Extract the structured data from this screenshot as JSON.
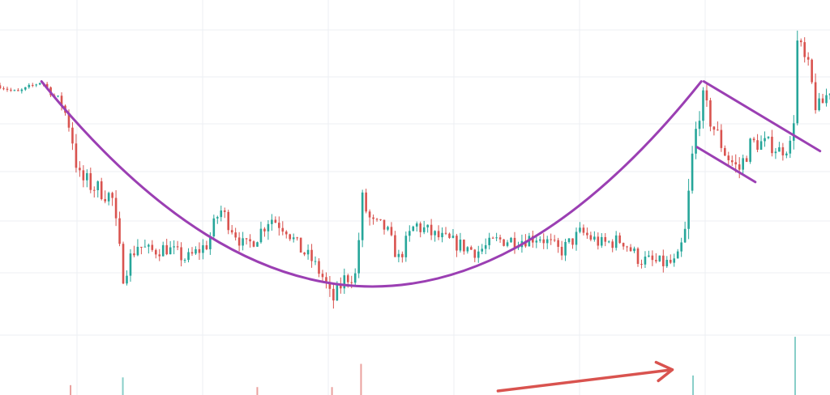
{
  "chart_data": {
    "type": "candlestick",
    "title": "",
    "xlabel": "",
    "ylabel": "",
    "grid": true,
    "ylim": [
      0,
      100
    ],
    "xlim": [
      0,
      100
    ],
    "colors": {
      "up": "#26a69a",
      "down": "#d9534f",
      "pattern": "#9b3fb3",
      "arrow": "#d9534f",
      "grid": "#eceff3"
    },
    "anchors": [
      [
        0.0,
        79.0,
        0.8
      ],
      [
        2.0,
        77.0,
        0.8
      ],
      [
        5.0,
        80.0,
        0.6
      ],
      [
        7.5,
        74.0,
        1.5
      ],
      [
        8.5,
        68.0,
        3.0
      ],
      [
        9.5,
        55.0,
        3.0
      ],
      [
        12.0,
        52.0,
        2.5
      ],
      [
        13.5,
        50.0,
        2.5
      ],
      [
        14.8,
        30.0,
        2.5
      ],
      [
        16.5,
        38.0,
        2.5
      ],
      [
        18.0,
        36.0,
        2.0
      ],
      [
        20.0,
        37.0,
        2.0
      ],
      [
        22.5,
        34.0,
        2.0
      ],
      [
        25.0,
        38.0,
        2.0
      ],
      [
        26.5,
        47.0,
        2.5
      ],
      [
        28.0,
        42.0,
        2.0
      ],
      [
        29.5,
        37.0,
        2.0
      ],
      [
        31.0,
        40.0,
        2.0
      ],
      [
        32.5,
        45.0,
        2.5
      ],
      [
        34.5,
        42.0,
        2.0
      ],
      [
        36.0,
        37.0,
        2.0
      ],
      [
        37.5,
        34.0,
        2.0
      ],
      [
        39.0,
        29.0,
        2.0
      ],
      [
        40.0,
        23.0,
        2.5
      ],
      [
        41.5,
        29.0,
        2.0
      ],
      [
        43.0,
        30.0,
        2.0
      ],
      [
        43.5,
        50.0,
        3.0
      ],
      [
        44.8,
        43.0,
        2.5
      ],
      [
        46.5,
        42.0,
        2.0
      ],
      [
        48.0,
        34.0,
        2.0
      ],
      [
        50.0,
        43.0,
        2.5
      ],
      [
        52.5,
        40.0,
        2.0
      ],
      [
        55.0,
        38.0,
        2.0
      ],
      [
        57.5,
        36.0,
        2.0
      ],
      [
        60.0,
        39.0,
        2.0
      ],
      [
        62.5,
        39.0,
        2.0
      ],
      [
        65.0,
        40.0,
        2.0
      ],
      [
        67.5,
        36.0,
        2.0
      ],
      [
        70.0,
        41.0,
        2.0
      ],
      [
        72.5,
        38.0,
        2.0
      ],
      [
        75.0,
        39.0,
        2.0
      ],
      [
        77.0,
        34.0,
        2.0
      ],
      [
        79.5,
        33.0,
        2.0
      ],
      [
        81.5,
        33.0,
        2.0
      ],
      [
        82.5,
        40.0,
        3.0
      ],
      [
        83.5,
        62.0,
        4.0
      ],
      [
        84.5,
        76.0,
        3.0
      ],
      [
        85.8,
        69.0,
        3.0
      ],
      [
        87.5,
        61.0,
        2.5
      ],
      [
        89.0,
        57.0,
        2.5
      ],
      [
        90.5,
        64.0,
        2.5
      ],
      [
        92.5,
        64.0,
        2.0
      ],
      [
        94.0,
        62.0,
        2.0
      ],
      [
        95.5,
        64.0,
        2.0
      ],
      [
        96.0,
        90.0,
        4.0
      ],
      [
        97.5,
        82.0,
        3.0
      ],
      [
        98.5,
        72.0,
        3.0
      ],
      [
        100.0,
        78.0,
        2.0
      ]
    ],
    "volume_bars": [
      [
        8.5,
        1.5,
        "down"
      ],
      [
        14.8,
        3.5,
        "up"
      ],
      [
        31.0,
        1.0,
        "down"
      ],
      [
        40.0,
        1.0,
        "down"
      ],
      [
        43.5,
        7.0,
        "down"
      ],
      [
        83.5,
        4.0,
        "up"
      ],
      [
        95.8,
        14.0,
        "up"
      ]
    ],
    "trend_lines": [
      {
        "id": "cup",
        "x": [
          5.0,
          45.0,
          84.5
        ],
        "y": [
          80.0,
          27.0,
          80.0
        ]
      },
      {
        "id": "handle-top",
        "x": [
          84.8,
          98.8
        ],
        "y": [
          80.0,
          62.0
        ]
      },
      {
        "id": "handle-bottom",
        "x": [
          84.0,
          91.0
        ],
        "y": [
          63.0,
          54.0
        ]
      },
      {
        "id": "breakout-arrow",
        "x": [
          60.0,
          81.0
        ],
        "y": [
          0.0,
          5.5
        ]
      }
    ]
  }
}
